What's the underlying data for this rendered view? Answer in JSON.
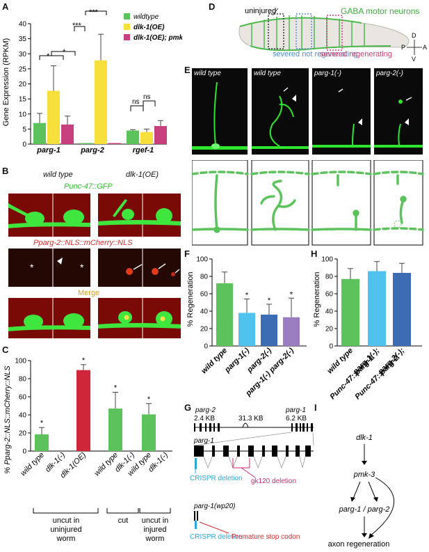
{
  "panels": {
    "A": "A",
    "B": "B",
    "C": "C",
    "D": "D",
    "E": "E",
    "F": "F",
    "G": "G",
    "H": "H",
    "I": "I"
  },
  "panel_a": {
    "ylabel": "Gene Expression (RPKM)",
    "yticks": [
      "0",
      "5",
      "10",
      "15",
      "20",
      "25",
      "30",
      "35",
      "40"
    ],
    "groups": [
      "parg-1",
      "parg-2",
      "rgef-1"
    ],
    "legend": [
      "wildtype",
      "dlk-1(OE)",
      "dlk-1(OE); pmk-3(-)"
    ],
    "sig": [
      "*",
      "*",
      "***",
      "***",
      "ns",
      "ns"
    ],
    "colors": [
      "#5cc35c",
      "#f7e03c",
      "#c9407f"
    ]
  },
  "panel_b": {
    "col_labels": [
      "wild type",
      "dlk-1(OE)"
    ],
    "row_labels": [
      "Punc-47::GFP",
      "Pparg-2::NLS::mCherry::NLS",
      "Merge"
    ],
    "asterisk": "*"
  },
  "panel_c": {
    "ylabel": "% Pparg-2::NLS::mCherry::NLS",
    "yticks": [
      "0",
      "20",
      "40",
      "60",
      "80",
      "100"
    ],
    "bars": [
      "wild type",
      "dlk-1(-)",
      "dlk-1(OE)",
      "wild type",
      "dlk-1(-)",
      "wild type",
      "dlk-1(-)"
    ],
    "groups": [
      "uncut in uninjured worm",
      "cut",
      "uncut in injured worm"
    ],
    "star": "*"
  },
  "panel_d": {
    "uninjured": "uninjured",
    "title": "GABA motor neurons",
    "severed_not": "severed not regenerating",
    "severed_reg": "severed regenerating",
    "compass": [
      "D",
      "P",
      "A",
      "V"
    ]
  },
  "panel_e": {
    "labels": [
      "wild type",
      "wild type",
      "parg-1(-)",
      "parg-2(-)"
    ]
  },
  "panel_f": {
    "ylabel": "% Regeneration",
    "yticks": [
      "0",
      "20",
      "40",
      "60",
      "80",
      "100"
    ],
    "bars": [
      "wild type",
      "parg-1(-)",
      "parg-2(-)",
      "parg-1(-) parg-2(-)"
    ],
    "star": "*"
  },
  "panel_h": {
    "ylabel": "% Regeneration",
    "yticks": [
      "0",
      "20",
      "40",
      "60",
      "80",
      "100"
    ],
    "bars": [
      "wild type",
      "parg-1(-); Punc-47::parg-1",
      "parg-2(-); Punc-47::parg-2"
    ]
  },
  "panel_g": {
    "parg2": "parg-2",
    "parg1": "parg-1",
    "kb1": "2.4 KB",
    "kb2": "31.3 KB",
    "kb3": "6.2 KB",
    "parg1_zoom": "parg-1",
    "crispr1": "CRISPR deletion",
    "gk120": "gk120 deletion",
    "wp20": "parg-1(wp20)",
    "crispr2": "CRISPR deletion",
    "stop": "Premature stop codon"
  },
  "panel_i": {
    "nodes": [
      "dlk-1",
      "pmk-3",
      "parg-1 / parg-2",
      "axon regeneration"
    ]
  },
  "chart_data": [
    {
      "type": "bar",
      "ylabel": "Gene Expression (RPKM)",
      "ylim": [
        0,
        40
      ],
      "categories": [
        "parg-1",
        "parg-2",
        "rgef-1"
      ],
      "series": [
        {
          "name": "wildtype",
          "values": [
            7.0,
            0.0,
            4.5
          ],
          "errors": [
            3.2,
            0,
            0.3
          ],
          "color": "#5cc35c"
        },
        {
          "name": "dlk-1(OE)",
          "values": [
            17.7,
            27.8,
            4.0
          ],
          "errors": [
            8.3,
            8.7,
            1.0
          ],
          "color": "#f7e03c"
        },
        {
          "name": "dlk-1(OE); pmk-3(-)",
          "values": [
            6.5,
            0.0,
            6.0
          ],
          "errors": [
            2.8,
            0,
            1.8
          ],
          "color": "#c9407f"
        }
      ]
    },
    {
      "type": "bar",
      "ylabel": "% Pparg-2::NLS::mCherry::NLS",
      "ylim": [
        0,
        100
      ],
      "categories": [
        "wild type",
        "dlk-1(-)",
        "dlk-1(OE)",
        "wild type",
        "dlk-1(-)",
        "wild type",
        "dlk-1(-)"
      ],
      "values": [
        18.5,
        0,
        89.5,
        47,
        0,
        40.5,
        0
      ],
      "errors": [
        7.5,
        0,
        6,
        18,
        0,
        12,
        0
      ],
      "colors": [
        "#5cc35c",
        "#5cc35c",
        "#d0263a",
        "#5cc35c",
        "#5cc35c",
        "#5cc35c",
        "#5cc35c"
      ]
    },
    {
      "type": "bar",
      "ylabel": "% Regeneration",
      "ylim": [
        0,
        100
      ],
      "categories": [
        "wild type",
        "parg-1(-)",
        "parg-2(-)",
        "parg-1(-) parg-2(-)"
      ],
      "values": [
        72,
        38,
        36,
        33
      ],
      "errors": [
        13,
        16,
        12,
        22
      ],
      "colors": [
        "#5cc35c",
        "#4fc3ee",
        "#3d6cb4",
        "#9a7cc0"
      ]
    },
    {
      "type": "bar",
      "ylabel": "% Regeneration",
      "ylim": [
        0,
        100
      ],
      "categories": [
        "wild type",
        "parg-1(-); Punc-47::parg-1",
        "parg-2(-); Punc-47::parg-2"
      ],
      "values": [
        77,
        86,
        84
      ],
      "errors": [
        12,
        11,
        11
      ],
      "colors": [
        "#5cc35c",
        "#4fc3ee",
        "#3d6cb4"
      ]
    }
  ]
}
